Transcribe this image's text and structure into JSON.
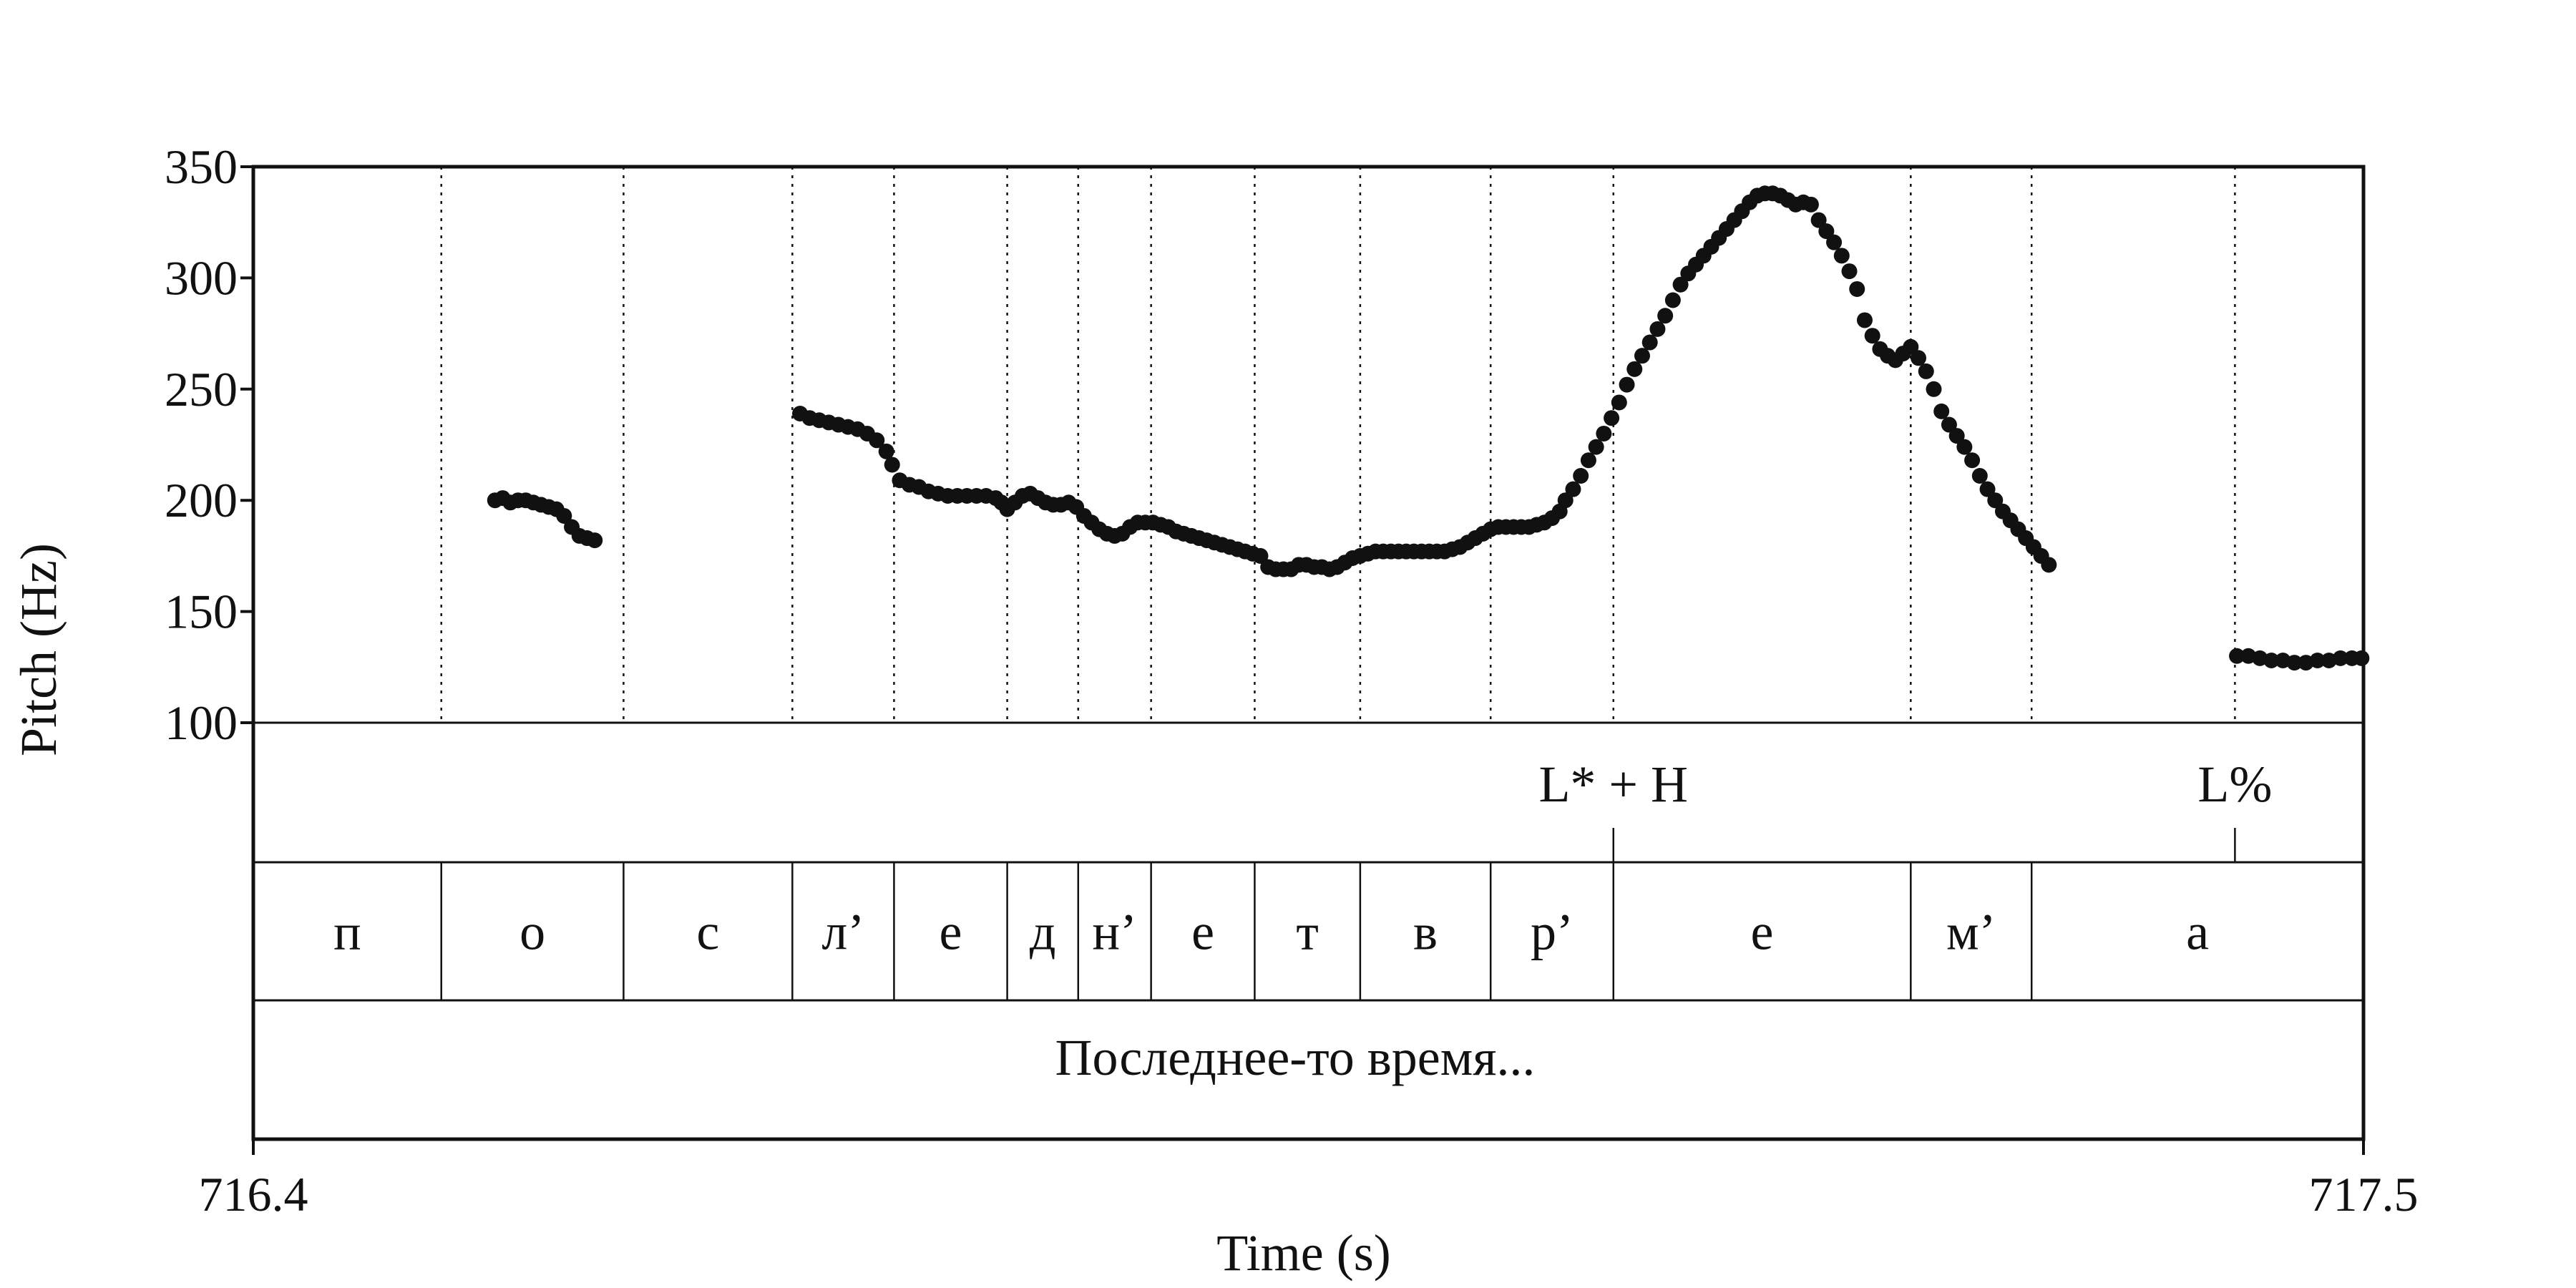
{
  "chart_data": {
    "type": "scatter",
    "ylabel": "Pitch (Hz)",
    "xlabel": "Time (s)",
    "xlim": [
      716.4,
      717.5
    ],
    "ylim": [
      100,
      350
    ],
    "yticks": [
      "350",
      "300",
      "250",
      "200",
      "150",
      "100"
    ],
    "xticks": [
      "716.4",
      "717.5"
    ],
    "segments": [
      {
        "label": "п",
        "start": 716.4,
        "end": 716.498
      },
      {
        "label": "о",
        "start": 716.498,
        "end": 716.593
      },
      {
        "label": "с",
        "start": 716.593,
        "end": 716.681
      },
      {
        "label": "л’",
        "start": 716.681,
        "end": 716.734
      },
      {
        "label": "е",
        "start": 716.734,
        "end": 716.793
      },
      {
        "label": "д",
        "start": 716.793,
        "end": 716.83
      },
      {
        "label": "н’",
        "start": 716.83,
        "end": 716.868
      },
      {
        "label": "е",
        "start": 716.868,
        "end": 716.922
      },
      {
        "label": "т",
        "start": 716.922,
        "end": 716.977
      },
      {
        "label": "в",
        "start": 716.977,
        "end": 717.045
      },
      {
        "label": "р’",
        "start": 717.045,
        "end": 717.109
      },
      {
        "label": "е",
        "start": 717.109,
        "end": 717.264
      },
      {
        "label": "м’",
        "start": 717.264,
        "end": 717.327
      },
      {
        "label": "а",
        "start": 717.327,
        "end": 717.5
      }
    ],
    "tones": [
      {
        "label": "L* + H",
        "time": 717.109
      },
      {
        "label": "L%",
        "time": 717.433
      }
    ],
    "utterance": "Последнее-то время...",
    "series": [
      {
        "points": [
          [
            716.526,
            200
          ],
          [
            716.53,
            201
          ],
          [
            716.534,
            199
          ],
          [
            716.538,
            200
          ],
          [
            716.542,
            200
          ],
          [
            716.546,
            199
          ],
          [
            716.55,
            198
          ],
          [
            716.554,
            197
          ],
          [
            716.558,
            196
          ],
          [
            716.562,
            193
          ],
          [
            716.566,
            188
          ],
          [
            716.57,
            184
          ],
          [
            716.574,
            183
          ],
          [
            716.578,
            182
          ],
          [
            716.685,
            239
          ],
          [
            716.69,
            237
          ],
          [
            716.695,
            236
          ],
          [
            716.7,
            235
          ],
          [
            716.705,
            234
          ],
          [
            716.71,
            233
          ],
          [
            716.715,
            232
          ],
          [
            716.72,
            230
          ],
          [
            716.725,
            227
          ],
          [
            716.73,
            222
          ],
          [
            716.733,
            216
          ],
          [
            716.737,
            209
          ],
          [
            716.742,
            207
          ],
          [
            716.747,
            206
          ],
          [
            716.752,
            204
          ],
          [
            716.757,
            203
          ],
          [
            716.762,
            202
          ],
          [
            716.767,
            202
          ],
          [
            716.772,
            202
          ],
          [
            716.777,
            202
          ],
          [
            716.782,
            202
          ],
          [
            716.787,
            201
          ],
          [
            716.79,
            199
          ],
          [
            716.793,
            196
          ],
          [
            716.797,
            199
          ],
          [
            716.801,
            202
          ],
          [
            716.805,
            203
          ],
          [
            716.809,
            201
          ],
          [
            716.813,
            199
          ],
          [
            716.817,
            198
          ],
          [
            716.821,
            198
          ],
          [
            716.825,
            199
          ],
          [
            716.829,
            197
          ],
          [
            716.833,
            193
          ],
          [
            716.837,
            190
          ],
          [
            716.841,
            187
          ],
          [
            716.845,
            185
          ],
          [
            716.849,
            184
          ],
          [
            716.853,
            185
          ],
          [
            716.857,
            188
          ],
          [
            716.861,
            190
          ],
          [
            716.865,
            190
          ],
          [
            716.869,
            190
          ],
          [
            716.873,
            189
          ],
          [
            716.877,
            188
          ],
          [
            716.881,
            186
          ],
          [
            716.885,
            185
          ],
          [
            716.889,
            184
          ],
          [
            716.893,
            183
          ],
          [
            716.897,
            182
          ],
          [
            716.901,
            181
          ],
          [
            716.905,
            180
          ],
          [
            716.909,
            179
          ],
          [
            716.913,
            178
          ],
          [
            716.917,
            177
          ],
          [
            716.921,
            176
          ],
          [
            716.925,
            175
          ],
          [
            716.929,
            170
          ],
          [
            716.933,
            169
          ],
          [
            716.937,
            169
          ],
          [
            716.941,
            169
          ],
          [
            716.945,
            171
          ],
          [
            716.949,
            171
          ],
          [
            716.953,
            170
          ],
          [
            716.957,
            170
          ],
          [
            716.961,
            169
          ],
          [
            716.965,
            170
          ],
          [
            716.969,
            172
          ],
          [
            716.973,
            174
          ],
          [
            716.977,
            175
          ],
          [
            716.981,
            176
          ],
          [
            716.985,
            177
          ],
          [
            716.989,
            177
          ],
          [
            716.993,
            177
          ],
          [
            716.997,
            177
          ],
          [
            717.001,
            177
          ],
          [
            717.005,
            177
          ],
          [
            717.009,
            177
          ],
          [
            717.013,
            177
          ],
          [
            717.017,
            177
          ],
          [
            717.021,
            177
          ],
          [
            717.025,
            178
          ],
          [
            717.029,
            179
          ],
          [
            717.033,
            181
          ],
          [
            717.037,
            183
          ],
          [
            717.041,
            185
          ],
          [
            717.045,
            187
          ],
          [
            717.049,
            188
          ],
          [
            717.053,
            188
          ],
          [
            717.057,
            188
          ],
          [
            717.061,
            188
          ],
          [
            717.065,
            188
          ],
          [
            717.069,
            189
          ],
          [
            717.073,
            190
          ],
          [
            717.077,
            192
          ],
          [
            717.081,
            195
          ],
          [
            717.084,
            200
          ],
          [
            717.088,
            205
          ],
          [
            717.092,
            211
          ],
          [
            717.096,
            218
          ],
          [
            717.1,
            224
          ],
          [
            717.104,
            230
          ],
          [
            717.108,
            237
          ],
          [
            717.112,
            244
          ],
          [
            717.116,
            252
          ],
          [
            717.12,
            259
          ],
          [
            717.124,
            265
          ],
          [
            717.128,
            271
          ],
          [
            717.132,
            277
          ],
          [
            717.136,
            283
          ],
          [
            717.14,
            290
          ],
          [
            717.144,
            297
          ],
          [
            717.148,
            302
          ],
          [
            717.152,
            306
          ],
          [
            717.156,
            310
          ],
          [
            717.16,
            314
          ],
          [
            717.164,
            318
          ],
          [
            717.168,
            322
          ],
          [
            717.172,
            326
          ],
          [
            717.176,
            330
          ],
          [
            717.18,
            334
          ],
          [
            717.184,
            337
          ],
          [
            717.188,
            338
          ],
          [
            717.192,
            338
          ],
          [
            717.196,
            337
          ],
          [
            717.2,
            335
          ],
          [
            717.204,
            333
          ],
          [
            717.208,
            334
          ],
          [
            717.212,
            333
          ],
          [
            717.216,
            326
          ],
          [
            717.22,
            321
          ],
          [
            717.224,
            316
          ],
          [
            717.228,
            310
          ],
          [
            717.232,
            303
          ],
          [
            717.236,
            295
          ],
          [
            717.24,
            281
          ],
          [
            717.244,
            274
          ],
          [
            717.248,
            268
          ],
          [
            717.252,
            265
          ],
          [
            717.256,
            263
          ],
          [
            717.26,
            266
          ],
          [
            717.264,
            269
          ],
          [
            717.268,
            264
          ],
          [
            717.272,
            258
          ],
          [
            717.276,
            250
          ],
          [
            717.28,
            240
          ],
          [
            717.284,
            234
          ],
          [
            717.288,
            229
          ],
          [
            717.292,
            224
          ],
          [
            717.296,
            218
          ],
          [
            717.3,
            211
          ],
          [
            717.304,
            205
          ],
          [
            717.308,
            200
          ],
          [
            717.312,
            195
          ],
          [
            717.316,
            191
          ],
          [
            717.32,
            187
          ],
          [
            717.324,
            183
          ],
          [
            717.328,
            179
          ],
          [
            717.332,
            175
          ],
          [
            717.336,
            171
          ],
          [
            717.434,
            130
          ],
          [
            717.44,
            130
          ],
          [
            717.446,
            129
          ],
          [
            717.452,
            128
          ],
          [
            717.458,
            128
          ],
          [
            717.464,
            127
          ],
          [
            717.47,
            127
          ],
          [
            717.476,
            128
          ],
          [
            717.482,
            128
          ],
          [
            717.488,
            129
          ],
          [
            717.494,
            129
          ],
          [
            717.499,
            129
          ]
        ]
      }
    ]
  }
}
